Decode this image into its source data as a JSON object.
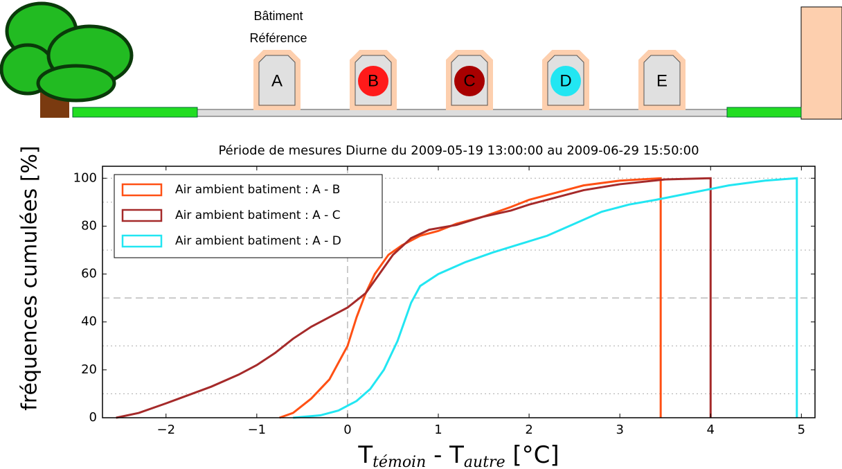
{
  "header": {
    "reference_label": [
      "Bâtiment",
      "Référence"
    ],
    "buildings": [
      {
        "label": "A"
      },
      {
        "label": "B",
        "color": "#ff1a1a"
      },
      {
        "label": "C",
        "color": "#a80000"
      },
      {
        "label": "D",
        "color": "#22e6f2"
      },
      {
        "label": "E"
      }
    ]
  },
  "chart_data": {
    "type": "line",
    "title": "Période de mesures Diurne du 2009-05-19 13:00:00 au 2009-06-29 15:50:00",
    "ylabel": "fréquences cumulées [%]",
    "xlabel_parts": [
      "T",
      "témoin",
      " - T",
      "autre",
      " [°C]"
    ],
    "xlim": [
      -2.7,
      5.15
    ],
    "ylim": [
      0,
      105
    ],
    "xticks": [
      {
        "value": -2,
        "label": "−2"
      },
      {
        "value": -1,
        "label": "−1"
      },
      0,
      1,
      2,
      3,
      4,
      5
    ],
    "yticks": [
      0,
      20,
      40,
      60,
      80,
      100
    ],
    "dotted_hlines": [
      10,
      30,
      70,
      90,
      100
    ],
    "dashed_hlines": [
      50
    ],
    "dashed_vlines": [
      0
    ],
    "legend": "upper left",
    "series": [
      {
        "name": "Air ambient batiment : A - B",
        "color": "#ff5014",
        "x": [
          -0.75,
          -0.6,
          -0.4,
          -0.2,
          0,
          0.1,
          0.2,
          0.3,
          0.45,
          0.6,
          0.8,
          1.0,
          1.2,
          1.5,
          1.8,
          2.0,
          2.3,
          2.6,
          3.0,
          3.45,
          3.45
        ],
        "values": [
          0,
          2,
          8,
          16,
          30,
          42,
          52,
          60,
          68,
          72,
          76,
          78,
          81,
          84,
          88,
          91,
          94,
          97,
          99,
          100,
          0
        ]
      },
      {
        "name": "Air ambient batiment : A - C",
        "color": "#a52a2a",
        "x": [
          -2.55,
          -2.3,
          -2.0,
          -1.5,
          -1.2,
          -1.0,
          -0.8,
          -0.6,
          -0.4,
          -0.2,
          0,
          0.2,
          0.35,
          0.5,
          0.7,
          0.9,
          1.2,
          1.5,
          1.8,
          2.0,
          2.3,
          2.6,
          3.0,
          3.5,
          4.0,
          4.0
        ],
        "values": [
          0,
          2,
          6,
          13,
          18,
          22,
          27,
          33,
          38,
          42,
          46,
          52,
          60,
          68,
          75,
          78.5,
          80.5,
          84,
          86.5,
          89,
          92,
          95,
          97.5,
          99.5,
          100,
          0
        ]
      },
      {
        "name": "Air ambient batiment : A - D",
        "color": "#22e6f2",
        "x": [
          -0.6,
          -0.3,
          -0.1,
          0.1,
          0.25,
          0.4,
          0.55,
          0.7,
          0.8,
          1.0,
          1.3,
          1.6,
          1.9,
          2.2,
          2.5,
          2.8,
          3.1,
          3.4,
          3.8,
          4.2,
          4.6,
          4.95,
          4.95
        ],
        "values": [
          0,
          1,
          3,
          7,
          12,
          20,
          32,
          48,
          55,
          60,
          65,
          69,
          72.5,
          76,
          81,
          86,
          89,
          91,
          94,
          97,
          99,
          100,
          0
        ]
      }
    ]
  }
}
